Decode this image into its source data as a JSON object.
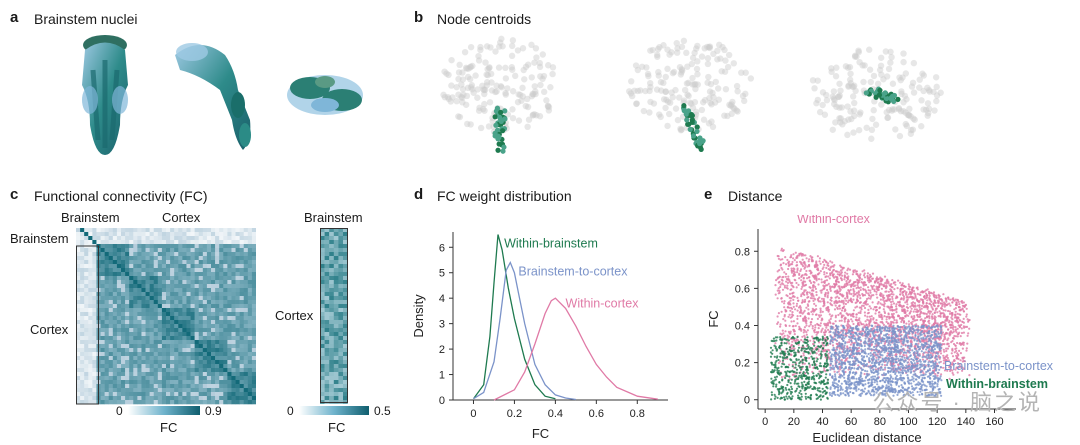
{
  "panels": {
    "a": {
      "label": "a",
      "title": "Brainstem nuclei"
    },
    "b": {
      "label": "b",
      "title": "Node centroids"
    },
    "c": {
      "label": "c",
      "title": "Functional connectivity (FC)",
      "left": {
        "col_brainstem": "Brainstem",
        "col_cortex": "Cortex",
        "row_brainstem": "Brainstem",
        "row_cortex": "Cortex",
        "cbar_min": "0",
        "cbar_max": "0.9",
        "cbar_label": "FC"
      },
      "right": {
        "top": "Brainstem",
        "row_cortex": "Cortex",
        "cbar_min": "0",
        "cbar_max": "0.5",
        "cbar_label": "FC"
      }
    },
    "d": {
      "label": "d",
      "title": "FC weight distribution"
    },
    "e": {
      "label": "e",
      "title": "Distance"
    }
  },
  "colors": {
    "within_brainstem": "#1e7a4f",
    "brainstem_to_cortex": "#7b93c9",
    "within_cortex": "#e07aa6",
    "fc_teal": "#1b7a8c"
  },
  "watermark": "公众号 · 脑之说",
  "chart_data": [
    {
      "type": "line",
      "panel": "d",
      "xlabel": "FC",
      "ylabel": "Density",
      "xlim": [
        -0.1,
        0.95
      ],
      "ylim": [
        0,
        6.6
      ],
      "xticks": [
        0,
        0.2,
        0.4,
        0.6,
        0.8
      ],
      "yticks": [
        0,
        1,
        2,
        3,
        4,
        5,
        6
      ],
      "series": [
        {
          "name": "Within-brainstem",
          "color": "#1e7a4f",
          "x": [
            0.0,
            0.05,
            0.08,
            0.1,
            0.12,
            0.14,
            0.17,
            0.2,
            0.25,
            0.3,
            0.35,
            0.4
          ],
          "y": [
            0.05,
            0.6,
            2.5,
            4.6,
            6.5,
            5.9,
            4.4,
            3.2,
            1.6,
            0.6,
            0.15,
            0.05
          ]
        },
        {
          "name": "Brainstem-to-cortex",
          "color": "#7b93c9",
          "x": [
            0.0,
            0.05,
            0.1,
            0.13,
            0.16,
            0.18,
            0.2,
            0.22,
            0.25,
            0.3,
            0.35,
            0.4,
            0.45,
            0.5
          ],
          "y": [
            0.05,
            0.3,
            1.5,
            3.2,
            5.1,
            5.4,
            5.0,
            4.2,
            3.0,
            1.4,
            0.6,
            0.2,
            0.08,
            0.02
          ]
        },
        {
          "name": "Within-cortex",
          "color": "#e07aa6",
          "x": [
            0.1,
            0.2,
            0.25,
            0.3,
            0.35,
            0.38,
            0.4,
            0.45,
            0.5,
            0.55,
            0.6,
            0.65,
            0.7,
            0.8,
            0.9
          ],
          "y": [
            0.0,
            0.4,
            1.1,
            2.2,
            3.4,
            3.9,
            4.0,
            3.6,
            2.9,
            2.1,
            1.4,
            0.9,
            0.5,
            0.15,
            0.03
          ]
        }
      ]
    },
    {
      "type": "scatter",
      "panel": "e",
      "xlabel": "Euclidean distance",
      "ylabel": "FC",
      "xlim": [
        -5,
        175
      ],
      "ylim": [
        -0.05,
        0.92
      ],
      "xticks": [
        0,
        20,
        40,
        60,
        80,
        100,
        120,
        140,
        160
      ],
      "yticks": [
        0,
        0.2,
        0.4,
        0.6,
        0.8
      ],
      "series": [
        {
          "name": "Within-cortex",
          "color": "#e07aa6",
          "x_range": [
            5,
            150
          ],
          "y_range": [
            0.1,
            0.88
          ]
        },
        {
          "name": "Brainstem-to-cortex",
          "color": "#7b93c9",
          "x_range": [
            40,
            125
          ],
          "y_range": [
            0.0,
            0.45
          ]
        },
        {
          "name": "Within-brainstem",
          "color": "#1e7a4f",
          "x_range": [
            3,
            45
          ],
          "y_range": [
            0.0,
            0.38
          ]
        }
      ]
    }
  ]
}
